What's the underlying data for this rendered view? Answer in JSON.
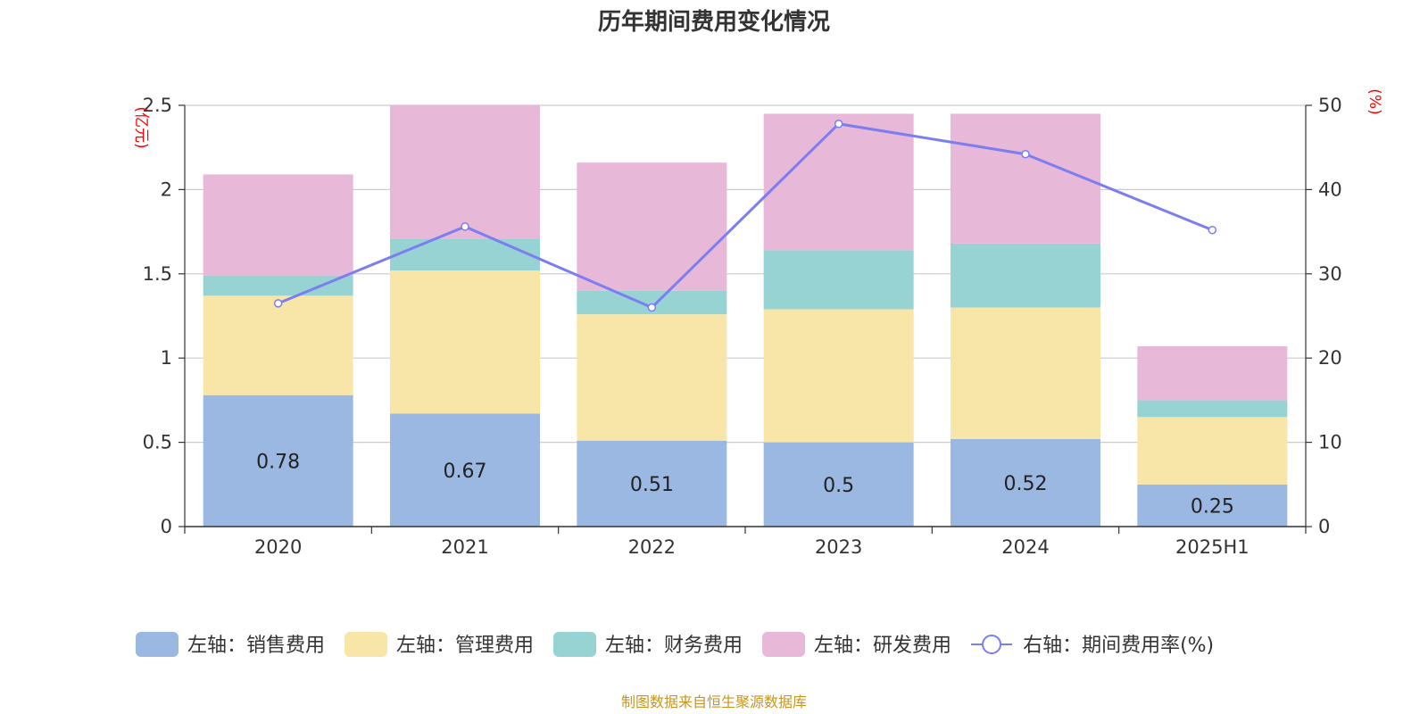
{
  "chart_data": {
    "type": "bar",
    "stacked": true,
    "title": "历年期间费用变化情况",
    "categories": [
      "2020",
      "2021",
      "2022",
      "2023",
      "2024",
      "2025H1"
    ],
    "left_axis": {
      "unit": "(亿元)",
      "ylim": [
        0,
        2.5
      ],
      "ticks": [
        "0",
        "0.5",
        "1",
        "1.5",
        "2",
        "2.5"
      ],
      "tick_values": [
        0,
        0.5,
        1,
        1.5,
        2,
        2.5
      ]
    },
    "right_axis": {
      "unit": "(%)",
      "ylim": [
        0,
        50
      ],
      "ticks": [
        "0",
        "10",
        "20",
        "30",
        "40",
        "50"
      ],
      "tick_values": [
        0,
        10,
        20,
        30,
        40,
        50
      ]
    },
    "series": [
      {
        "name": "左轴：销售费用",
        "axis": "left",
        "color": "#9bb8e2",
        "values": [
          0.78,
          0.67,
          0.51,
          0.5,
          0.52,
          0.25
        ],
        "data_labels": [
          "0.78",
          "0.67",
          "0.51",
          "0.5",
          "0.52",
          "0.25"
        ]
      },
      {
        "name": "左轴：管理费用",
        "axis": "left",
        "color": "#f7e6a8",
        "values": [
          0.59,
          0.85,
          0.75,
          0.79,
          0.78,
          0.4
        ]
      },
      {
        "name": "左轴：财务费用",
        "axis": "left",
        "color": "#98d3d4",
        "values": [
          0.12,
          0.19,
          0.14,
          0.35,
          0.38,
          0.1
        ]
      },
      {
        "name": "左轴：研发费用",
        "axis": "left",
        "color": "#e8b8d8",
        "values": [
          0.6,
          0.79,
          0.76,
          0.81,
          0.77,
          0.32
        ]
      },
      {
        "name": "右轴：期间费用率(%)",
        "axis": "right",
        "type": "line",
        "color": "#7b7ef0",
        "values": [
          26.5,
          35.6,
          26.0,
          47.8,
          44.2,
          35.2
        ]
      }
    ],
    "grid": true,
    "legend_position": "bottom"
  },
  "footer": {
    "source": "制图数据来自恒生聚源数据库"
  }
}
